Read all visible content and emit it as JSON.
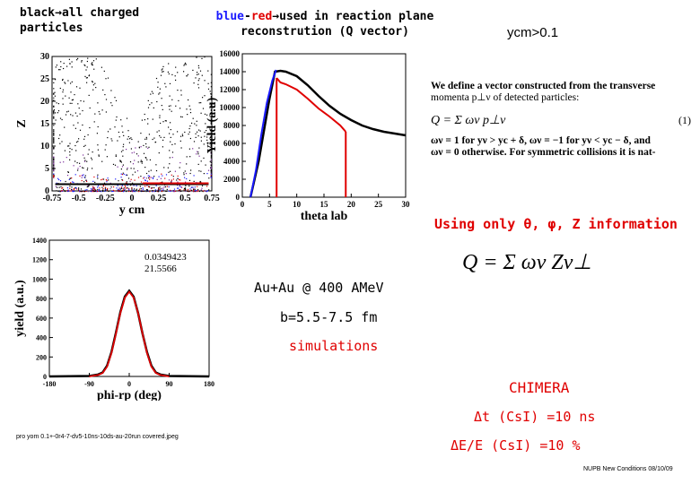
{
  "legend": {
    "black": "black",
    "arrow": "→",
    "black_rest": "all charged",
    "black_line2": "particles",
    "blue": "blue",
    "dash": "-",
    "red": "red",
    "blue_rest": "used in reaction plane",
    "blue_line2": "reconstrution (Q vector)"
  },
  "ycm_label": "ycm>0.1",
  "definition": {
    "line1": "We define a vector constructed from the transverse",
    "line2": "momenta p⊥ν of detected particles:",
    "formula": "Q = Σ ων p⊥ν",
    "eq_number": "(1)",
    "line3": "ων = 1 for yν > yc + δ, ων = −1 for yν < yc − δ, and",
    "line4": "ων = 0 otherwise. For symmetric collisions it is nat-"
  },
  "using_only": "Using only θ, φ, Z information",
  "q_formula": "Q = Σ ων Zν⊥",
  "system": "Au+Au  @ 400 AMeV",
  "impact": "b=5.5-7.5 fm",
  "simulations": "simulations",
  "chimera": "CHIMERA",
  "dt": "Δt (CsI) =10 ns",
  "de": "ΔE/E (CsI) =10 %",
  "footer_left": "pro yom 0.1+-0r4-7-dv5-10ns-10ds-au-20run covered.jpeg",
  "footer_right": "NUPB New Conditions 08/10/09",
  "colors": {
    "blue": "#1a1aff",
    "red": "#e00000",
    "black": "#000000"
  },
  "chart_data": [
    {
      "type": "scatter",
      "title": "",
      "xlabel": "y cm",
      "ylabel": "Z",
      "xlim": [
        -0.75,
        0.75
      ],
      "ylim": [
        0,
        30
      ],
      "xticks": [
        "-0.75",
        "-0.5",
        "-0.25",
        "0",
        "0.25",
        "0.5",
        "0.75"
      ],
      "yticks": [
        "0",
        "5",
        "10",
        "15",
        "20",
        "25",
        "30"
      ],
      "series": [
        {
          "name": "all charged",
          "color": "#000000",
          "description": "points spread toward high Z near |y|≈0.5"
        },
        {
          "name": "reaction plane (blue-red)",
          "color": "#1a1aff",
          "description": "concentrated at low Z"
        }
      ]
    },
    {
      "type": "line",
      "xlabel": "theta lab",
      "ylabel": "Yield (a.u)",
      "xlim": [
        0,
        30
      ],
      "ylim": [
        0,
        16000
      ],
      "xticks": [
        "0",
        "5",
        "10",
        "15",
        "20",
        "25",
        "30"
      ],
      "yticks": [
        "0",
        "2000",
        "4000",
        "6000",
        "8000",
        "10000",
        "12000",
        "14000",
        "16000"
      ],
      "series": [
        {
          "name": "all charged",
          "color": "#000000",
          "x": [
            1.5,
            3,
            5,
            6,
            7,
            8,
            10,
            12,
            14,
            16,
            18,
            20,
            22,
            24,
            26,
            28,
            30
          ],
          "y": [
            0,
            4000,
            11000,
            14000,
            14100,
            14000,
            13500,
            12500,
            11300,
            10200,
            9300,
            8600,
            8000,
            7600,
            7300,
            7100,
            6900
          ]
        },
        {
          "name": "blue (forward)",
          "color": "#1a1aff",
          "x": [
            1.5,
            2.5,
            3.5,
            4.5,
            5.5,
            6.2
          ],
          "y": [
            0,
            3000,
            7000,
            10500,
            13000,
            14200
          ]
        },
        {
          "name": "red (reaction plane)",
          "color": "#e00000",
          "x": [
            6.3,
            7,
            8,
            10,
            12,
            14,
            16,
            18,
            19
          ],
          "y": [
            13300,
            12800,
            12600,
            12000,
            11000,
            9900,
            9000,
            8000,
            7300
          ]
        }
      ]
    },
    {
      "type": "line",
      "xlabel": "phi-rp (deg)",
      "ylabel": "yield (a.u.)",
      "xlim": [
        -180,
        180
      ],
      "ylim": [
        0,
        1400
      ],
      "xticks": [
        "-180",
        "-90",
        "0",
        "90",
        "180"
      ],
      "yticks": [
        "0",
        "200",
        "400",
        "600",
        "800",
        "1000",
        "1200",
        "1400"
      ],
      "annotations": [
        "0.0349423",
        "21.5566"
      ],
      "series": [
        {
          "name": "data",
          "color": "#000000",
          "x": [
            -180,
            -90,
            -70,
            -60,
            -50,
            -40,
            -30,
            -20,
            -10,
            0,
            10,
            20,
            30,
            40,
            50,
            60,
            70,
            90,
            180
          ],
          "y": [
            0,
            5,
            20,
            40,
            110,
            250,
            450,
            660,
            820,
            880,
            820,
            650,
            440,
            250,
            110,
            40,
            20,
            5,
            0
          ]
        },
        {
          "name": "gauss fit",
          "color": "#e00000",
          "x": [
            -90,
            -70,
            -60,
            -50,
            -40,
            -30,
            -20,
            -10,
            0,
            10,
            20,
            30,
            40,
            50,
            60,
            70,
            90
          ],
          "y": [
            0,
            15,
            35,
            100,
            240,
            440,
            650,
            810,
            870,
            810,
            650,
            440,
            240,
            100,
            35,
            15,
            0
          ]
        }
      ]
    }
  ]
}
